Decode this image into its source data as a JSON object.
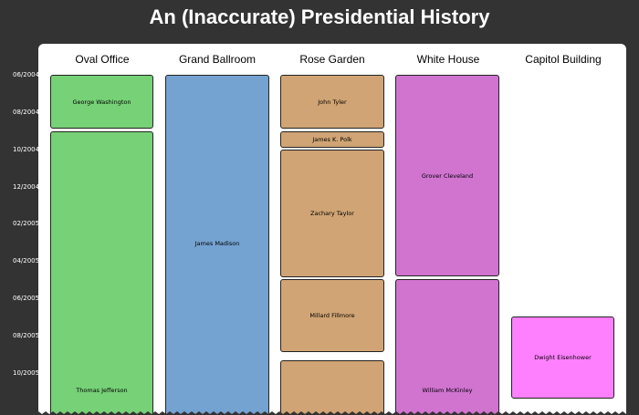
{
  "title": "An (Inaccurate) Presidential History",
  "axis": {
    "ticks": [
      "06/2004",
      "08/2004",
      "10/2004",
      "12/2004",
      "02/2005",
      "04/2005",
      "06/2005",
      "08/2005",
      "10/2005"
    ]
  },
  "rooms": [
    "Oval Office",
    "Grand Ballroom",
    "Rose Garden",
    "White House",
    "Capitol Building"
  ],
  "colors": {
    "background": "#333333",
    "panel": "#ffffff",
    "oval_office": "#77d177",
    "grand_ballroom": "#74a2d1",
    "rose_garden": "#d0a474",
    "white_house": "#d074d0",
    "capitol_building": "#ff80ff"
  },
  "events": {
    "washington": "George Washington",
    "jefferson": "Thomas Jefferson",
    "madison": "James Madison",
    "tyler": "John Tyler",
    "polk": "James K. Polk",
    "taylor": "Zachary Taylor",
    "fillmore": "Millard Fillmore",
    "cleveland": "Grover Cleveland",
    "mckinley": "William McKinley",
    "eisenhower": "Dwight Eisenhower"
  }
}
